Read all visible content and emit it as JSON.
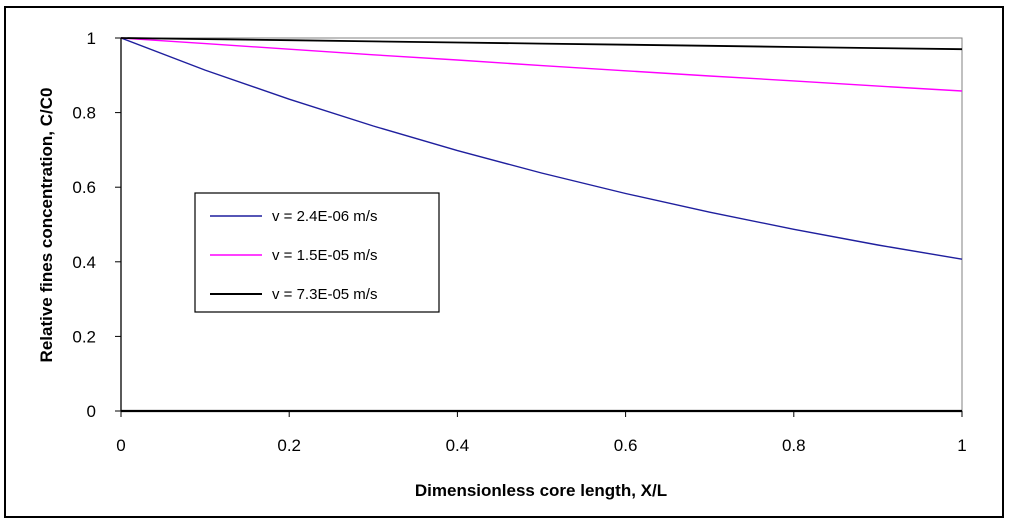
{
  "chart_data": {
    "type": "line",
    "title": "",
    "xlabel": "Dimensionless core length, X/L",
    "ylabel": "Relative fines concentration, C/C0",
    "xlim": [
      0,
      1
    ],
    "ylim": [
      0,
      1
    ],
    "xticks": [
      "0",
      "0.2",
      "0.4",
      "0.6",
      "0.8",
      "1"
    ],
    "yticks": [
      "0",
      "0.2",
      "0.4",
      "0.6",
      "0.8",
      "1"
    ],
    "grid": false,
    "legend_position": "left-middle",
    "series": [
      {
        "name": "v =  2.4E-06 m/s",
        "color": "#1f1f9e",
        "x": [
          0,
          0.1,
          0.2,
          0.3,
          0.4,
          0.5,
          0.6,
          0.7,
          0.8,
          0.9,
          1.0
        ],
        "y": [
          1.0,
          0.914,
          0.836,
          0.764,
          0.698,
          0.638,
          0.583,
          0.533,
          0.487,
          0.445,
          0.407
        ]
      },
      {
        "name": "v =  1.5E-05 m/s",
        "color": "#ff00ff",
        "x": [
          0,
          0.1,
          0.2,
          0.3,
          0.4,
          0.5,
          0.6,
          0.7,
          0.8,
          0.9,
          1.0
        ],
        "y": [
          1.0,
          0.985,
          0.97,
          0.955,
          0.941,
          0.926,
          0.912,
          0.898,
          0.885,
          0.871,
          0.858
        ]
      },
      {
        "name": "v =  7.3E-05 m/s",
        "color": "#000000",
        "x": [
          0,
          0.1,
          0.2,
          0.3,
          0.4,
          0.5,
          0.6,
          0.7,
          0.8,
          0.9,
          1.0
        ],
        "y": [
          1.0,
          0.997,
          0.994,
          0.991,
          0.988,
          0.985,
          0.982,
          0.979,
          0.976,
          0.973,
          0.97
        ]
      }
    ]
  }
}
